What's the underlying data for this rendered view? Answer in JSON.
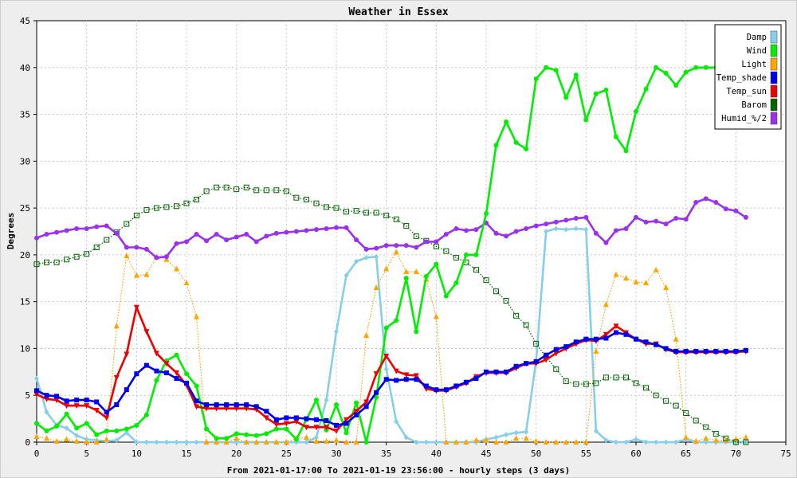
{
  "chart_data": {
    "type": "line",
    "title": "Weather in Essex",
    "xlabel": "From 2021-01-17:00 To 2021-01-19 23:56:00 - hourly steps (3 days)",
    "ylabel": "Degrees",
    "xlim": [
      0,
      75
    ],
    "ylim": [
      0,
      45
    ],
    "xticks": [
      0,
      5,
      10,
      15,
      20,
      25,
      30,
      35,
      40,
      45,
      50,
      55,
      60,
      65,
      70,
      75
    ],
    "yticks": [
      0,
      5,
      10,
      15,
      20,
      25,
      30,
      35,
      40,
      45
    ],
    "grid": true,
    "legend_position": "top-right",
    "series": [
      {
        "name": "Damp",
        "color": "#87ceeb",
        "marker": "diamond",
        "dash": "solid",
        "values": [
          6.8,
          3.2,
          1.8,
          1.5,
          0.7,
          0.3,
          0.2,
          0.1,
          0.2,
          1.0,
          0,
          0,
          0,
          0,
          0,
          0,
          0,
          0,
          0,
          0,
          0,
          0,
          0,
          0,
          0,
          0,
          0,
          0,
          0.5,
          4.5,
          11.8,
          17.8,
          19.3,
          19.7,
          19.8,
          7.8,
          2.2,
          0.5,
          0,
          0,
          0,
          0,
          0,
          0,
          0,
          0.3,
          0.5,
          0.8,
          1.0,
          1.1,
          8.7,
          22.5,
          22.8,
          22.7,
          22.8,
          22.7,
          1.2,
          0.2,
          0,
          0,
          0.3,
          0,
          0,
          0,
          0,
          0.3,
          0,
          0,
          0,
          0,
          0,
          0
        ]
      },
      {
        "name": "Wind",
        "color": "#00ee00",
        "marker": "circle",
        "dash": "solid",
        "values": [
          2.0,
          1.2,
          1.7,
          3.0,
          1.5,
          2.0,
          0.8,
          1.2,
          1.2,
          1.4,
          1.8,
          2.9,
          6.6,
          8.7,
          9.3,
          7.3,
          6.0,
          1.4,
          0.4,
          0.4,
          0.9,
          0.8,
          0.7,
          0.9,
          1.4,
          1.4,
          0.3,
          2.4,
          4.5,
          1.3,
          4.0,
          1.0,
          4.2,
          0,
          4.8,
          12.2,
          13.0,
          17.5,
          11.8,
          17.7,
          19.0,
          15.6,
          17.0,
          20.0,
          20.0,
          24.4,
          31.7,
          34.2,
          32.0,
          31.3,
          38.8,
          40.0,
          39.7,
          36.8,
          39.2,
          34.4,
          37.2,
          37.6,
          32.6,
          31.1,
          35.3,
          37.7,
          40.0,
          39.4,
          38.1,
          39.5,
          40.0,
          40.0,
          40.0,
          40.0,
          40.0,
          40.0
        ]
      },
      {
        "name": "Light",
        "color": "#ffa500",
        "marker": "triangle-up",
        "dash": "dotted",
        "values": [
          0.6,
          0.4,
          0.1,
          0.3,
          0.1,
          0,
          0,
          0.3,
          12.4,
          19.9,
          17.8,
          17.9,
          19.8,
          19.5,
          18.5,
          17.0,
          13.4,
          0,
          0,
          0,
          0.4,
          0,
          0,
          0,
          0,
          0,
          0.4,
          0.5,
          0.1,
          0.1,
          0.2,
          0,
          0,
          11.4,
          16.5,
          18.5,
          20.3,
          18.2,
          18.2,
          17.4,
          13.4,
          0,
          0,
          0,
          0.2,
          0.2,
          0,
          0,
          0.4,
          0.4,
          0.1,
          0,
          0,
          0,
          0,
          0,
          9.7,
          14.7,
          17.9,
          17.5,
          17.1,
          17.0,
          18.4,
          16.5,
          11.0,
          0.5,
          0.1,
          0.4,
          0.2,
          0.2,
          0.3,
          0.5
        ]
      },
      {
        "name": "Temp_shade",
        "color": "#0000ee",
        "marker": "square",
        "dash": "solid",
        "values": [
          5.5,
          5.0,
          4.9,
          4.4,
          4.5,
          4.5,
          4.3,
          3.2,
          4.0,
          5.6,
          7.3,
          8.2,
          7.6,
          7.4,
          6.8,
          6.3,
          4.4,
          4.0,
          4.0,
          4.0,
          4.0,
          4.0,
          3.8,
          3.3,
          2.4,
          2.6,
          2.6,
          2.5,
          2.4,
          2.3,
          1.8,
          2.0,
          2.9,
          3.8,
          5.3,
          6.7,
          6.6,
          6.7,
          6.7,
          6.0,
          5.6,
          5.6,
          6.0,
          6.4,
          6.8,
          7.5,
          7.5,
          7.5,
          8.1,
          8.4,
          8.6,
          9.3,
          9.9,
          10.2,
          10.7,
          11.0,
          11.0,
          11.1,
          11.7,
          11.5,
          11.0,
          10.7,
          10.4,
          10.0,
          9.7,
          9.7,
          9.7,
          9.7,
          9.7,
          9.7,
          9.7,
          9.8
        ]
      },
      {
        "name": "Temp_sun",
        "color": "#ee0000",
        "marker": "triangle-down",
        "dash": "solid",
        "values": [
          5.1,
          4.6,
          4.5,
          3.9,
          3.9,
          3.9,
          3.4,
          2.6,
          6.9,
          9.4,
          14.4,
          11.8,
          9.5,
          8.4,
          7.4,
          6.1,
          3.8,
          3.6,
          3.6,
          3.6,
          3.6,
          3.6,
          3.5,
          2.6,
          1.9,
          2.0,
          2.2,
          1.6,
          1.6,
          1.6,
          1.2,
          2.4,
          3.3,
          4.3,
          7.3,
          9.2,
          7.6,
          7.2,
          7.1,
          5.7,
          5.5,
          5.5,
          5.9,
          6.3,
          7.0,
          7.4,
          7.4,
          7.4,
          7.9,
          8.4,
          8.4,
          8.8,
          9.5,
          10.0,
          10.5,
          10.9,
          10.8,
          11.5,
          12.4,
          11.7,
          11.0,
          10.5,
          10.5,
          9.9,
          9.6,
          9.6,
          9.6,
          9.6,
          9.6,
          9.6,
          9.6,
          9.7
        ]
      },
      {
        "name": "Barom",
        "color": "#006400",
        "marker": "open-square",
        "dash": "dotted",
        "values": [
          19.0,
          19.2,
          19.2,
          19.5,
          19.8,
          20.1,
          20.8,
          21.6,
          22.4,
          23.3,
          24.2,
          24.8,
          25.0,
          25.1,
          25.2,
          25.5,
          25.9,
          26.8,
          27.2,
          27.2,
          27.0,
          27.2,
          26.9,
          26.9,
          26.9,
          26.8,
          26.1,
          25.9,
          25.5,
          25.1,
          25.0,
          24.6,
          24.7,
          24.5,
          24.5,
          24.2,
          23.8,
          23.1,
          22.0,
          21.5,
          20.9,
          20.4,
          19.7,
          19.2,
          18.4,
          17.3,
          16.1,
          15.1,
          13.5,
          12.5,
          10.5,
          9.1,
          7.8,
          6.5,
          6.2,
          6.2,
          6.3,
          6.9,
          6.9,
          6.9,
          6.3,
          5.8,
          5.0,
          4.4,
          3.9,
          3.1,
          2.3,
          1.6,
          0.9,
          0.4,
          0,
          0
        ]
      },
      {
        "name": "Humid_%/2",
        "color": "#9b30ee",
        "marker": "circle",
        "dash": "solid",
        "values": [
          21.8,
          22.2,
          22.4,
          22.6,
          22.8,
          22.8,
          23.0,
          23.1,
          22.3,
          20.8,
          20.8,
          20.6,
          19.7,
          19.8,
          21.2,
          21.4,
          22.2,
          21.5,
          22.2,
          21.6,
          21.9,
          22.2,
          21.4,
          22.0,
          22.3,
          22.4,
          22.5,
          22.6,
          22.7,
          22.8,
          22.9,
          22.9,
          21.6,
          20.6,
          20.7,
          21.0,
          21.0,
          21.0,
          20.8,
          21.4,
          21.4,
          22.2,
          22.8,
          22.6,
          22.7,
          23.4,
          22.3,
          22.0,
          22.5,
          22.8,
          23.1,
          23.3,
          23.5,
          23.7,
          23.9,
          24.0,
          22.3,
          21.3,
          22.6,
          22.8,
          24.0,
          23.5,
          23.6,
          23.3,
          23.9,
          23.8,
          25.6,
          26.0,
          25.6,
          24.9,
          24.7,
          24.0
        ]
      }
    ]
  }
}
